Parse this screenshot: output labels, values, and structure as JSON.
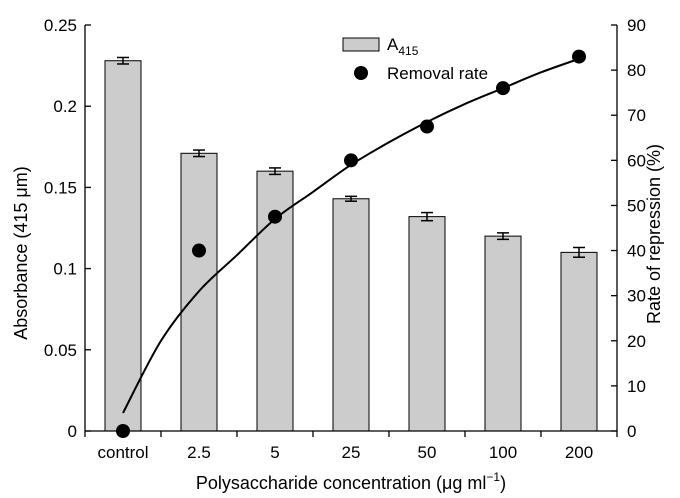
{
  "chart_data": {
    "type": "bar",
    "categories": [
      "control",
      "2.5",
      "5",
      "25",
      "50",
      "100",
      "200"
    ],
    "series": [
      {
        "name": "A415",
        "name_main": "A",
        "name_sub": "415",
        "type": "bar",
        "axis": "left",
        "values": [
          0.228,
          0.171,
          0.16,
          0.143,
          0.132,
          0.12,
          0.11
        ],
        "errors": [
          0.002,
          0.002,
          0.002,
          0.0015,
          0.0025,
          0.002,
          0.003
        ],
        "color": "#cccccc"
      },
      {
        "name": "Removal rate",
        "type": "scatter",
        "axis": "right",
        "values": [
          0,
          40,
          47.5,
          60,
          67.5,
          76,
          83
        ],
        "color": "#000000"
      }
    ],
    "trendline": {
      "axis": "right",
      "points": [
        [
          0,
          4
        ],
        [
          0.5,
          20
        ],
        [
          1,
          31
        ],
        [
          1.5,
          39
        ],
        [
          2,
          47
        ],
        [
          2.5,
          53
        ],
        [
          3,
          59
        ],
        [
          3.5,
          64
        ],
        [
          4,
          68.5
        ],
        [
          4.5,
          72.5
        ],
        [
          5,
          76
        ],
        [
          5.5,
          79.5
        ],
        [
          6,
          82.5
        ]
      ]
    },
    "xlabel": "Polysaccharide concentration (μg ml",
    "xlabel_sup": "−1",
    "xlabel_end": ")",
    "ylabel_left": "Absorbance (415 μm)",
    "ylabel_right": "Rate of repression (%)",
    "ylim_left": [
      0,
      0.25
    ],
    "ylim_right": [
      0,
      90
    ],
    "left_ticks": [
      "0",
      "0.05",
      "0.1",
      "0.15",
      "0.2",
      "0.25"
    ],
    "right_ticks": [
      "0",
      "10",
      "20",
      "30",
      "40",
      "50",
      "60",
      "70",
      "80",
      "90"
    ],
    "grid": false,
    "legend_position": "top-right"
  }
}
